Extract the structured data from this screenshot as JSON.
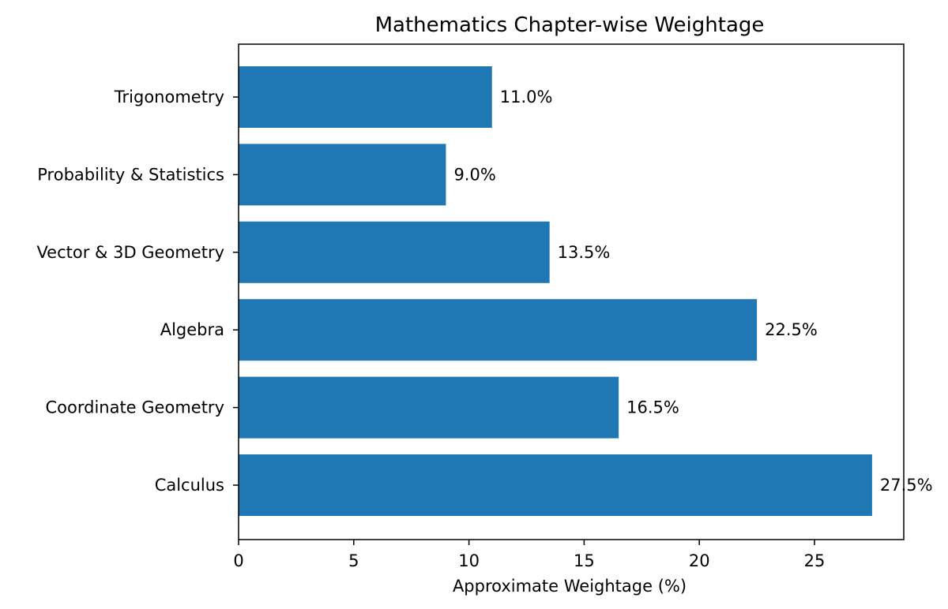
{
  "chart_data": {
    "type": "bar",
    "orientation": "horizontal",
    "title": "Mathematics Chapter-wise Weightage",
    "xlabel": "Approximate Weightage (%)",
    "ylabel": "",
    "categories": [
      "Calculus",
      "Coordinate Geometry",
      "Algebra",
      "Vector & 3D Geometry",
      "Probability & Statistics",
      "Trigonometry"
    ],
    "values": [
      27.5,
      16.5,
      22.5,
      13.5,
      9.0,
      11.0
    ],
    "data_labels": [
      "27.5%",
      "16.5%",
      "22.5%",
      "13.5%",
      "9.0%",
      "11.0%"
    ],
    "xlim": [
      0,
      28.875
    ],
    "xticks": [
      0,
      5,
      10,
      15,
      20,
      25
    ],
    "xtick_labels": [
      "0",
      "5",
      "10",
      "15",
      "20",
      "25"
    ],
    "grid": false,
    "bar_color": "#1f77b4"
  }
}
